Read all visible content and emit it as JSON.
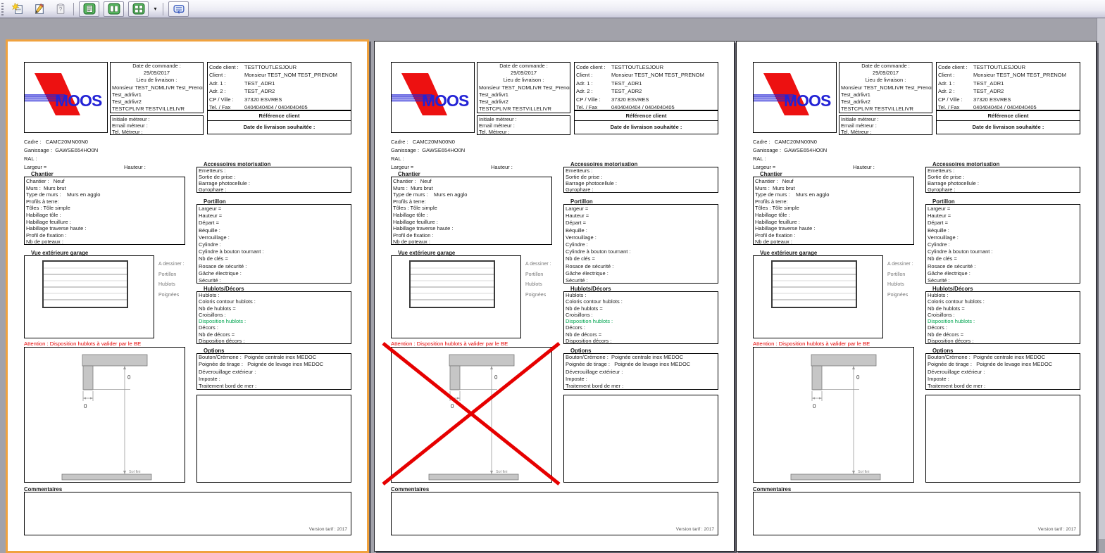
{
  "toolbar": {
    "icons": [
      {
        "name": "new-document-icon"
      },
      {
        "name": "edit-icon"
      },
      {
        "name": "help-icon"
      },
      {
        "name": "one-page-view-icon"
      },
      {
        "name": "two-page-view-icon"
      },
      {
        "name": "multi-page-view-icon"
      },
      {
        "name": "view-options-dropdown-icon",
        "glyph": "▾"
      },
      {
        "name": "print-export-icon"
      }
    ]
  },
  "pages_meta": [
    {
      "selected": true,
      "crossed": false
    },
    {
      "selected": false,
      "crossed": true
    },
    {
      "selected": false,
      "crossed": false
    }
  ],
  "logo": {
    "text": "MOOS"
  },
  "date_box": {
    "lines": [
      {
        "text": "Date de commande :",
        "cls": "center"
      },
      {
        "text": "29/09/2017",
        "cls": "center"
      },
      {
        "text": "Lieu de livraison :",
        "cls": "center"
      },
      "Monsieur TEST_NOMLIVR Test_Prenom",
      "Test_adrlivr1",
      "Test_adrlivr2",
      "TESTCPLIVR TESTVILLELIVR"
    ]
  },
  "metreur_box": {
    "lines": [
      "Initiale métreur :",
      "Email métreur :",
      "Tel. Métreur :"
    ]
  },
  "client_box": {
    "rows": [
      {
        "label": "Code client :",
        "value": "TESTTOUTLESJOUR"
      },
      {
        "label": "Client :",
        "value": "Monsieur TEST_NOM TEST_PRENOM"
      },
      {
        "label": "Adr. 1 :",
        "value": "TEST_ADR1"
      },
      {
        "label": "Adr. 2 :",
        "value": "TEST_ADR2"
      },
      {
        "label": "CP / Ville :",
        "value": "37320 ESVRES"
      },
      {
        "label": "Tel. / Fax",
        "value": "0404040404 / 0404040405"
      }
    ],
    "reference_label": "Référence client",
    "delivery_label": "Date de livraison souhaitée :"
  },
  "info": {
    "cadre": "Cadre :   CAMC20MN00N0",
    "ganissage": "Ganissage :  GAWSE654HO0N",
    "ral": "RAL :",
    "largeur": "Largeur =",
    "hauteur": "Hauteur :"
  },
  "chantier": {
    "title": "Chantier",
    "lines": [
      "Chantier :   Neuf",
      "Murs :  Murs brut",
      "Type de murs :    Murs en agglo",
      "Profils à terre:",
      "Tôles : Tôle simple",
      "Habillage tôle :",
      "Habillage feuillure :",
      "Habillage traverse haute :",
      "Profil de fixation :",
      "Nb de poteaux :"
    ]
  },
  "vue": {
    "title": "Vue extérieure garage",
    "side_labels": [
      "A dessiner :",
      "Portillon",
      "Hublots",
      "Poignées"
    ],
    "attention": "Attention : Disposition hublots à valider par le BE"
  },
  "accessoires": {
    "title": "Accessoires motorisation",
    "lines": [
      "Emetteurs :",
      "Sortie de prise :",
      "Barrage photocellule :",
      "Gyrophare :"
    ]
  },
  "portillon": {
    "title": "Portillon",
    "lines": [
      "Largeur =",
      "Hauteur =",
      "Départ =",
      "Béquille :",
      "Verrouillage :",
      "Cylindre :",
      "Cylindre à bouton tournant :",
      "Nb de clés =",
      "Rosace de sécurité :",
      "Gâche électrique :",
      "Sécurité :"
    ]
  },
  "hublots": {
    "title": "Hublots/Décors",
    "lines": [
      "Hublots :",
      "Coloris contour hublots :",
      "Nb de hublots =",
      "Croisillons :",
      {
        "text": "Disposition hublots :",
        "cls": "green"
      },
      "Décors :",
      "Nb de décors =",
      "Disposition décors :"
    ]
  },
  "options": {
    "title": "Options",
    "lines": [
      "Bouton/Crémone :  Poignée centrale inox MEDOC",
      "Poignée de tirage :   Poignée de levage inox MEDOC",
      "Déverouillage extérieur :",
      "Imposte :",
      "Traitement bord de mer :"
    ]
  },
  "drawing": {
    "dim_vertical": "0",
    "dim_horizontal": "0",
    "floor_label": "Sol fini"
  },
  "comments": {
    "title": "Commentaires",
    "version": "Version tarif : 2017"
  },
  "colors": {
    "selected_page_border": "#F0A23E",
    "attention_red": "#E60000",
    "cross_red": "#E60000",
    "green_field": "#00A550",
    "logo_blue": "#2323D6",
    "logo_red": "#ED1111",
    "workspace": "#A2A2AA"
  }
}
